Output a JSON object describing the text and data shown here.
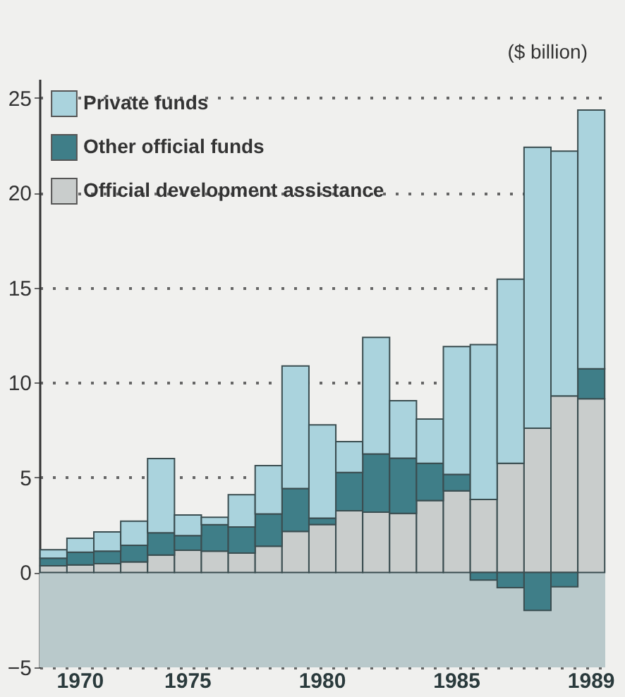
{
  "chart_data": {
    "type": "bar",
    "stacked": true,
    "ylabel": "($ billion)",
    "categories": [
      null,
      "1970",
      null,
      null,
      null,
      "1975",
      null,
      null,
      null,
      null,
      "1980",
      null,
      null,
      null,
      null,
      "1985",
      null,
      null,
      null,
      null,
      "1989"
    ],
    "series": [
      {
        "name": "Official development assistance",
        "color": "#c9cdcc",
        "values": [
          0.35,
          0.4,
          0.46,
          0.56,
          0.92,
          1.17,
          1.12,
          1.02,
          1.38,
          2.16,
          2.53,
          3.25,
          3.18,
          3.11,
          3.79,
          4.3,
          3.85,
          5.75,
          7.6,
          9.3,
          9.15
        ]
      },
      {
        "name": "Other official funds",
        "color": "#3f7e88",
        "values": [
          0.4,
          0.67,
          0.66,
          0.87,
          1.17,
          0.77,
          1.4,
          1.38,
          1.7,
          2.26,
          0.33,
          2.02,
          3.06,
          2.91,
          1.96,
          0.87,
          -0.4,
          -0.8,
          -2.0,
          -0.75,
          1.58
        ]
      },
      {
        "name": "Private funds",
        "color": "#aad3dd",
        "values": [
          0.45,
          0.73,
          1.02,
          1.27,
          3.91,
          1.09,
          0.39,
          1.7,
          2.55,
          6.46,
          4.92,
          1.62,
          6.15,
          3.03,
          2.33,
          6.73,
          8.16,
          9.7,
          14.8,
          12.9,
          13.63
        ]
      }
    ],
    "ylim": [
      -5,
      26
    ],
    "yticks": [
      -5,
      0,
      5,
      10,
      15,
      20,
      25
    ],
    "grid": "y",
    "legend": "top left"
  }
}
